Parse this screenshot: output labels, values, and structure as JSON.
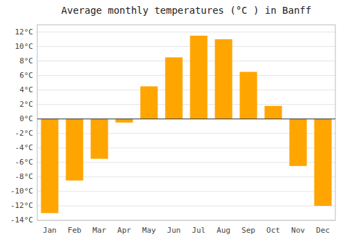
{
  "chart_data": {
    "type": "bar",
    "title": "Average monthly temperatures (°C ) in Banff",
    "categories": [
      "Jan",
      "Feb",
      "Mar",
      "Apr",
      "May",
      "Jun",
      "Jul",
      "Aug",
      "Sep",
      "Oct",
      "Nov",
      "Dec"
    ],
    "values": [
      -13,
      -8.5,
      -5.5,
      -0.5,
      4.5,
      8.5,
      11.5,
      11,
      6.5,
      1.8,
      -6.5,
      -12
    ],
    "color": "#FFA500",
    "ylim": [
      -14,
      13
    ],
    "yticks": [
      {
        "value": -14,
        "label": "-14°C"
      },
      {
        "value": -12,
        "label": "-12°C"
      },
      {
        "value": -10,
        "label": "-10°C"
      },
      {
        "value": -8,
        "label": "-8°C"
      },
      {
        "value": -6,
        "label": "-6°C"
      },
      {
        "value": -4,
        "label": "-4°C"
      },
      {
        "value": -2,
        "label": "-2°C"
      },
      {
        "value": 0,
        "label": "0°C"
      },
      {
        "value": 2,
        "label": "2°C"
      },
      {
        "value": 4,
        "label": "4°C"
      },
      {
        "value": 6,
        "label": "6°C"
      },
      {
        "value": 8,
        "label": "8°C"
      },
      {
        "value": 10,
        "label": "10°C"
      },
      {
        "value": 12,
        "label": "12°C"
      }
    ],
    "grid": true
  }
}
